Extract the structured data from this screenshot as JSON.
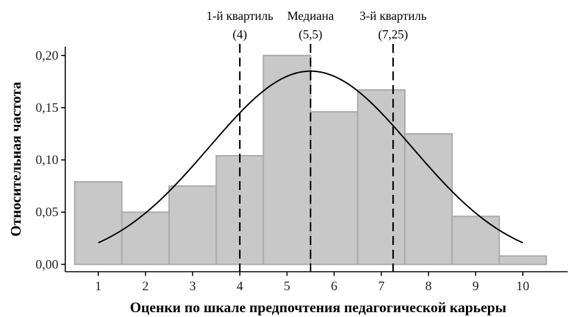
{
  "chart_data": {
    "type": "bar",
    "subtype": "histogram-with-density",
    "xlabel": "Оценки по шкале предпочтения педагогической карьеры",
    "ylabel": "Относительная частота",
    "xlim": [
      0.3,
      10.95
    ],
    "ylim": [
      -0.007,
      0.215
    ],
    "x_ticks": [
      {
        "value": 1,
        "label": "1"
      },
      {
        "value": 2,
        "label": "2"
      },
      {
        "value": 3,
        "label": "3"
      },
      {
        "value": 4,
        "label": "4"
      },
      {
        "value": 5,
        "label": "5"
      },
      {
        "value": 6,
        "label": "6"
      },
      {
        "value": 7,
        "label": "7"
      },
      {
        "value": 8,
        "label": "8"
      },
      {
        "value": 9,
        "label": "9"
      },
      {
        "value": 10,
        "label": "10"
      }
    ],
    "y_ticks": [
      {
        "value": 0.0,
        "label": "0,00"
      },
      {
        "value": 0.05,
        "label": "0,05"
      },
      {
        "value": 0.1,
        "label": "0,10"
      },
      {
        "value": 0.15,
        "label": "0,15"
      },
      {
        "value": 0.2,
        "label": "0,20"
      }
    ],
    "bins": [
      {
        "x": 1,
        "value": 0.079
      },
      {
        "x": 2,
        "value": 0.05
      },
      {
        "x": 3,
        "value": 0.075
      },
      {
        "x": 4,
        "value": 0.104
      },
      {
        "x": 5,
        "value": 0.2
      },
      {
        "x": 6,
        "value": 0.146
      },
      {
        "x": 7,
        "value": 0.167
      },
      {
        "x": 8,
        "value": 0.125
      },
      {
        "x": 9,
        "value": 0.046
      },
      {
        "x": 10,
        "value": 0.008
      }
    ],
    "bin_width": 1,
    "density_curve": {
      "mean": 5.5,
      "sd": 2.15,
      "peak": 0.185,
      "x_range": [
        1,
        10
      ]
    },
    "reference_lines": [
      {
        "x": 4,
        "label": "1-й квартиль",
        "value_label": "(4)"
      },
      {
        "x": 5.5,
        "label": "Медиана",
        "value_label": "(5,5)"
      },
      {
        "x": 7.25,
        "label": "3-й квартиль",
        "value_label": "(7,25)"
      }
    ],
    "grid": false,
    "legend": "none",
    "colors": {
      "bar_fill": "#c8c8c8",
      "bar_stroke": "#a9a9a9",
      "curve": "#000000",
      "axis": "#000000"
    }
  }
}
